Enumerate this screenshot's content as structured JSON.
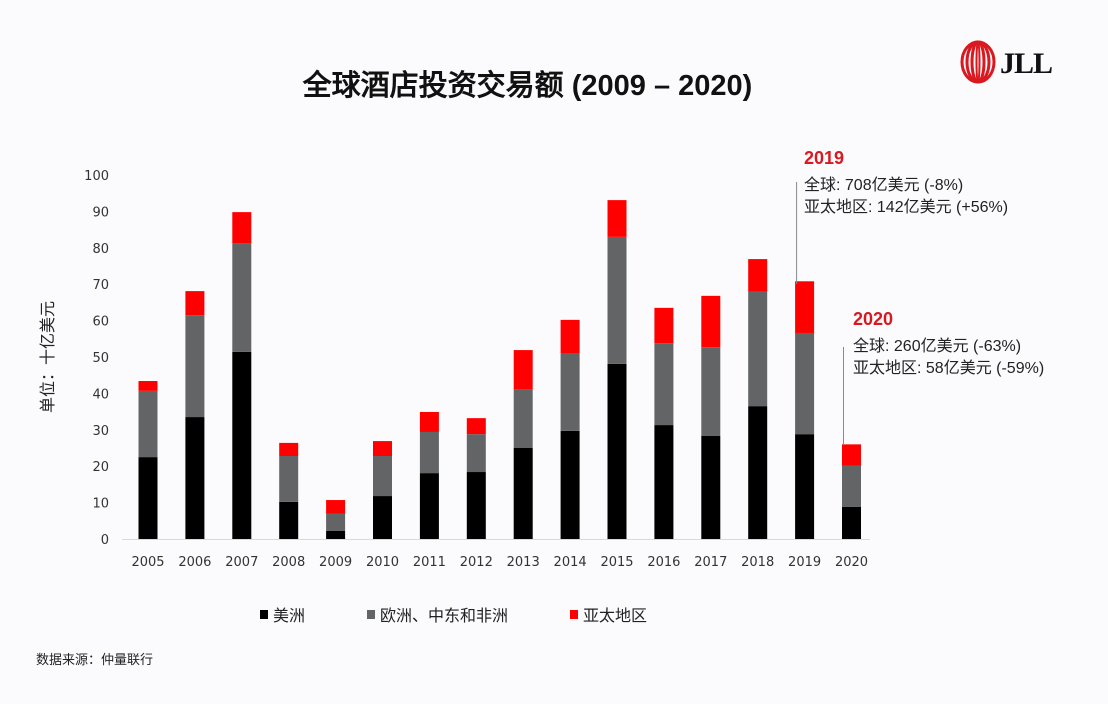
{
  "title": "全球酒店投资交易额 (2009 – 2020)",
  "logo": {
    "text": "JLL",
    "icon": "jll-helix-logo-icon"
  },
  "source": "数据来源：仲量联行",
  "annotations": [
    {
      "year": "2019",
      "lines": [
        "全球: 708亿美元 (-8%)",
        "亚太地区: 142亿美元 (+56%)"
      ]
    },
    {
      "year": "2020",
      "lines": [
        "全球: 260亿美元 (-63%)",
        "亚太地区: 58亿美元 (-59%)"
      ]
    }
  ],
  "colors": {
    "americas": "#000000",
    "emea": "#636466",
    "apac": "#ff0000",
    "accent": "#d9181f"
  },
  "chart_data": {
    "type": "bar",
    "stacked": true,
    "title": "全球酒店投资交易额 (2009 – 2020)",
    "xlabel": "",
    "ylabel": "单位：十亿美元",
    "ylim": [
      0,
      100
    ],
    "yticks": [
      0,
      10,
      20,
      30,
      40,
      50,
      60,
      70,
      80,
      90,
      100
    ],
    "grid": false,
    "legend_position": "bottom",
    "categories": [
      "2005",
      "2006",
      "2007",
      "2008",
      "2009",
      "2010",
      "2011",
      "2012",
      "2013",
      "2014",
      "2015",
      "2016",
      "2017",
      "2018",
      "2019",
      "2020"
    ],
    "series": [
      {
        "name": "美洲",
        "color": "#000000",
        "values": [
          22.5,
          33.5,
          51.4,
          10.2,
          2.2,
          11.8,
          18.1,
          18.4,
          25.0,
          29.7,
          48.1,
          31.3,
          28.3,
          36.5,
          28.8,
          8.8
        ]
      },
      {
        "name": "欧洲、中东和非洲",
        "color": "#636466",
        "values": [
          18.2,
          28.0,
          29.9,
          12.6,
          4.7,
          11.0,
          11.3,
          10.4,
          16.2,
          21.4,
          34.9,
          22.5,
          24.4,
          31.4,
          27.8,
          11.4
        ]
      },
      {
        "name": "亚太地区",
        "color": "#ff0000",
        "values": [
          2.7,
          6.6,
          8.5,
          3.6,
          3.8,
          4.1,
          5.5,
          4.4,
          10.7,
          9.1,
          10.1,
          9.7,
          14.1,
          9.0,
          14.2,
          5.8
        ]
      }
    ]
  }
}
